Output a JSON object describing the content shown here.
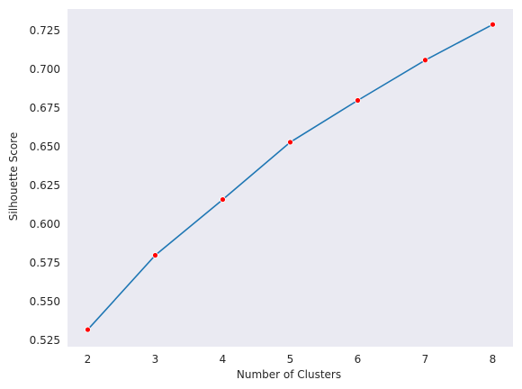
{
  "chart_data": {
    "type": "line",
    "title": "",
    "xlabel": "Number of Clusters",
    "ylabel": "Silhouette Score",
    "x": [
      2,
      3,
      4,
      5,
      6,
      7,
      8
    ],
    "series": [
      {
        "values": [
          0.532,
          0.58,
          0.616,
          0.653,
          0.68,
          0.706,
          0.729
        ]
      }
    ],
    "xticks": [
      "2",
      "3",
      "4",
      "5",
      "6",
      "7",
      "8"
    ],
    "yticks": [
      "0.525",
      "0.550",
      "0.575",
      "0.600",
      "0.625",
      "0.650",
      "0.675",
      "0.700",
      "0.725"
    ],
    "xlim": [
      1.7,
      8.3
    ],
    "ylim": [
      0.521,
      0.739
    ],
    "grid": false,
    "line_color": "#1f77b4",
    "marker_color": "#ff0000",
    "plot_background": "#eaeaf2"
  }
}
